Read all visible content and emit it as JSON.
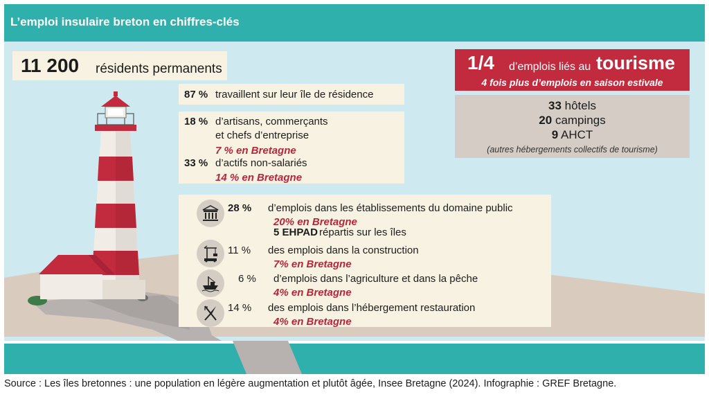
{
  "header": {
    "title": "L’emploi insulaire breton en chiffres-clés"
  },
  "residents": {
    "count": "11 200",
    "label": "résidents permanents"
  },
  "work_on_island": {
    "pct": "87 %",
    "text": "travaillent sur leur île de résidence"
  },
  "artisans": {
    "pct": "18 %",
    "text_line1": "d’artisans, commerçants",
    "text_line2": "et chefs d’entreprise",
    "ref": "7 % en Bretagne"
  },
  "non_salaried": {
    "pct": "33 %",
    "text": "d’actifs non-salariés",
    "ref": "14 % en Bretagne"
  },
  "tourism": {
    "fraction": "1/4",
    "text": "d’emplois liés au",
    "word": "tourisme",
    "subtitle": "4 fois plus d’emplois en saison estivale"
  },
  "lodging": {
    "items": [
      {
        "num": "33",
        "label": "hôtels"
      },
      {
        "num": "20",
        "label": "campings"
      },
      {
        "num": "9",
        "label": "AHCT"
      }
    ],
    "note": "(autres hébergements collectifs de tourisme)"
  },
  "sectors": [
    {
      "icon": "public-building-icon",
      "pct": "28 %",
      "text": "d’emplois dans les établissements du domaine public",
      "ref": "20% en Bretagne",
      "extra_num": "5 EHPAD",
      "extra_text": "répartis sur les îles"
    },
    {
      "icon": "crane-icon",
      "pct": "11 %",
      "text": "des emplois dans la construction",
      "ref": "7% en Bretagne"
    },
    {
      "icon": "fishing-boat-icon",
      "pct": "6 %",
      "text": "d’emplois dans l’agriculture et dans la pêche",
      "ref": "4% en Bretagne"
    },
    {
      "icon": "cutlery-icon",
      "pct": "14 %",
      "text": "des emplois dans l’hébergement restauration",
      "ref": "4% en Bretagne"
    }
  ],
  "footer": {
    "source": "Source : Les îles bretonnes : une population en légère augmentation et plutôt âgée, Insee Bretagne (2024). Infographie : GREF Bretagne."
  },
  "colors": {
    "header": "#2fb0ad",
    "sky": "#cfe9f1",
    "sea": "#2fb0ad",
    "accent_red": "#c22a3d",
    "sand": "#d8c9ba",
    "box": "#f8f2e3"
  }
}
